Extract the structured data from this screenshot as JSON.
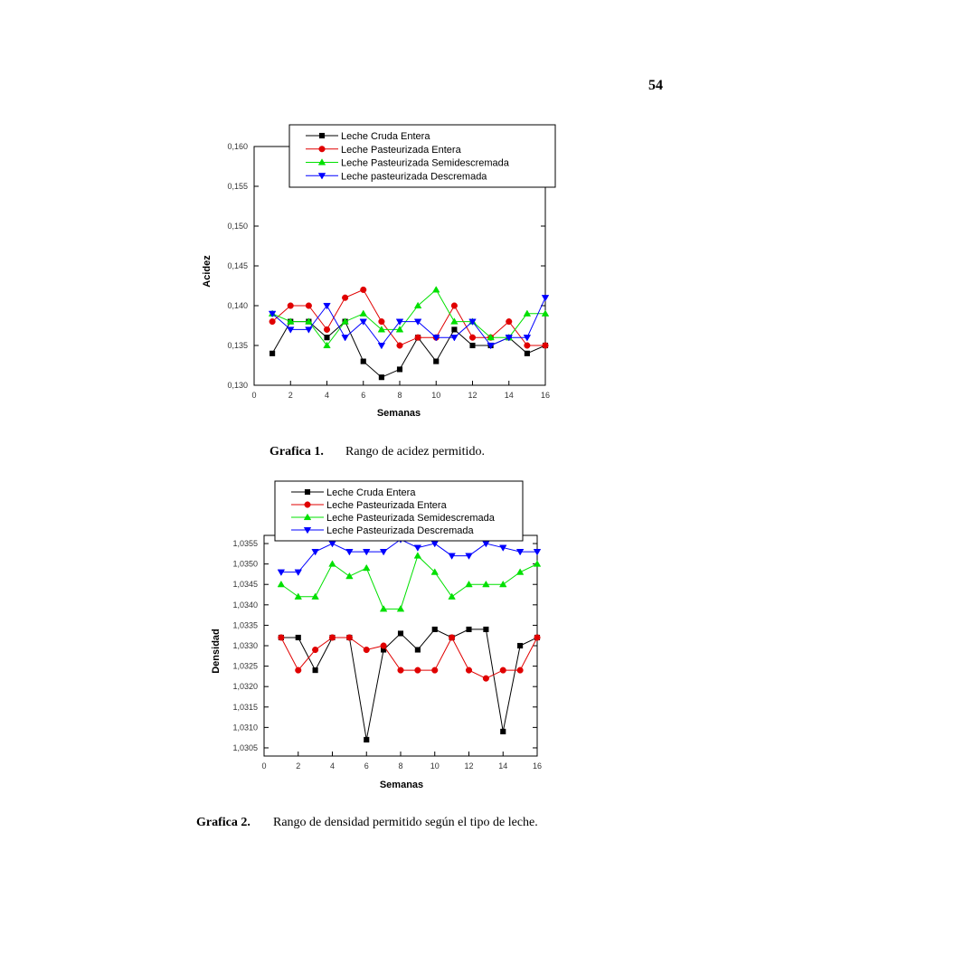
{
  "page_number": "54",
  "captions": [
    {
      "label": "Grafica 1.",
      "text": "Rango de acidez permitido."
    },
    {
      "label": "Grafica 2.",
      "text": "Rango de densidad permitido según el tipo de leche."
    }
  ],
  "chart_data": [
    {
      "type": "line",
      "x_label": "Semanas",
      "y_label": "Acidez",
      "x": [
        1,
        2,
        3,
        4,
        5,
        6,
        7,
        8,
        9,
        10,
        11,
        12,
        13,
        14,
        15,
        16
      ],
      "xlim": [
        0,
        16
      ],
      "xticks": [
        0,
        2,
        4,
        6,
        8,
        10,
        12,
        14,
        16
      ],
      "ylim": [
        0.13,
        0.16
      ],
      "yticks": [
        {
          "value": 0.13,
          "label": "0,130"
        },
        {
          "value": 0.135,
          "label": "0,135"
        },
        {
          "value": 0.14,
          "label": "0,140"
        },
        {
          "value": 0.145,
          "label": "0,145"
        },
        {
          "value": 0.15,
          "label": "0,150"
        },
        {
          "value": 0.155,
          "label": "0,155"
        },
        {
          "value": 0.16,
          "label": "0,160"
        }
      ],
      "series": [
        {
          "name": "Leche Cruda Entera",
          "color": "#000000",
          "marker": "square",
          "values": [
            0.134,
            0.138,
            0.138,
            0.136,
            0.138,
            0.133,
            0.131,
            0.132,
            0.136,
            0.133,
            0.137,
            0.135,
            0.135,
            0.136,
            0.134,
            0.135
          ]
        },
        {
          "name": "Leche Pasteurizada Entera",
          "color": "#e00000",
          "marker": "circle",
          "values": [
            0.138,
            0.14,
            0.14,
            0.137,
            0.141,
            0.142,
            0.138,
            0.135,
            0.136,
            0.136,
            0.14,
            0.136,
            0.136,
            0.138,
            0.135,
            0.135
          ]
        },
        {
          "name": "Leche Pasteurizada Semidescremada",
          "color": "#00e000",
          "marker": "triangle-up",
          "values": [
            0.139,
            0.138,
            0.138,
            0.135,
            0.138,
            0.139,
            0.137,
            0.137,
            0.14,
            0.142,
            0.138,
            0.138,
            0.136,
            0.136,
            0.139,
            0.139
          ]
        },
        {
          "name": "Leche pasteurizada Descremada",
          "color": "#0000ff",
          "marker": "triangle-down",
          "values": [
            0.139,
            0.137,
            0.137,
            0.14,
            0.136,
            0.138,
            0.135,
            0.138,
            0.138,
            0.136,
            0.136,
            0.138,
            0.135,
            0.136,
            0.136,
            0.141
          ]
        }
      ]
    },
    {
      "type": "line",
      "x_label": "Semanas",
      "y_label": "Densidad",
      "x": [
        1,
        2,
        3,
        4,
        5,
        6,
        7,
        8,
        9,
        10,
        11,
        12,
        13,
        14,
        15,
        16
      ],
      "xlim": [
        0,
        16
      ],
      "xticks": [
        0,
        2,
        4,
        6,
        8,
        10,
        12,
        14,
        16
      ],
      "ylim": [
        1.0303,
        1.0357
      ],
      "yticks": [
        {
          "value": 1.0305,
          "label": "1,0305"
        },
        {
          "value": 1.031,
          "label": "1,0310"
        },
        {
          "value": 1.0315,
          "label": "1,0315"
        },
        {
          "value": 1.032,
          "label": "1,0320"
        },
        {
          "value": 1.0325,
          "label": "1,0325"
        },
        {
          "value": 1.033,
          "label": "1,0330"
        },
        {
          "value": 1.0335,
          "label": "1,0335"
        },
        {
          "value": 1.034,
          "label": "1,0340"
        },
        {
          "value": 1.0345,
          "label": "1,0345"
        },
        {
          "value": 1.035,
          "label": "1,0350"
        },
        {
          "value": 1.0355,
          "label": "1,0355"
        }
      ],
      "series": [
        {
          "name": "Leche Cruda Entera",
          "color": "#000000",
          "marker": "square",
          "values": [
            1.0332,
            1.0332,
            1.0324,
            1.0332,
            1.0332,
            1.0307,
            1.0329,
            1.0333,
            1.0329,
            1.0334,
            1.0332,
            1.0334,
            1.0334,
            1.0309,
            1.033,
            1.0332
          ]
        },
        {
          "name": "Leche Pasteurizada Entera",
          "color": "#e00000",
          "marker": "circle",
          "values": [
            1.0332,
            1.0324,
            1.0329,
            1.0332,
            1.0332,
            1.0329,
            1.033,
            1.0324,
            1.0324,
            1.0324,
            1.0332,
            1.0324,
            1.0322,
            1.0324,
            1.0324,
            1.0332
          ]
        },
        {
          "name": "Leche Pasteurizada Semidescremada",
          "color": "#00e000",
          "marker": "triangle-up",
          "values": [
            1.0345,
            1.0342,
            1.0342,
            1.035,
            1.0347,
            1.0349,
            1.0339,
            1.0339,
            1.0352,
            1.0348,
            1.0342,
            1.0345,
            1.0345,
            1.0345,
            1.0348,
            1.035
          ]
        },
        {
          "name": "Leche Pasteurizada Descremada",
          "color": "#0000ff",
          "marker": "triangle-down",
          "values": [
            1.0348,
            1.0348,
            1.0353,
            1.0355,
            1.0353,
            1.0353,
            1.0353,
            1.0356,
            1.0354,
            1.0355,
            1.0352,
            1.0352,
            1.0355,
            1.0354,
            1.0353,
            1.0353
          ]
        }
      ]
    }
  ]
}
